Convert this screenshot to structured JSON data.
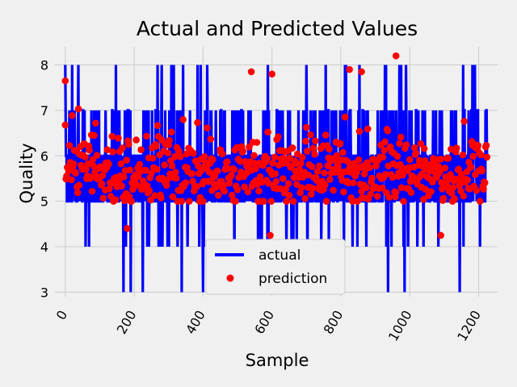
{
  "chart_data": {
    "type": "line",
    "title": "Actual and Predicted Values",
    "xlabel": "Sample",
    "ylabel": "Quality",
    "xlim": [
      -30,
      1255
    ],
    "ylim": [
      2.9,
      8.4
    ],
    "x_ticks": [
      0,
      200,
      400,
      600,
      800,
      1000,
      1200
    ],
    "x_tick_labels": [
      "0",
      "200",
      "400",
      "600",
      "800",
      "1000",
      "1200"
    ],
    "y_ticks": [
      3,
      4,
      5,
      6,
      7,
      8
    ],
    "y_tick_labels": [
      "3",
      "4",
      "5",
      "6",
      "7",
      "8"
    ],
    "grid": true,
    "legend": "lower-center",
    "n_samples": 1225,
    "series": [
      {
        "name": "actual",
        "style": "line",
        "color": "#0000ff",
        "value_distribution": {
          "3": 0.006,
          "4": 0.033,
          "5": 0.43,
          "6": 0.4,
          "7": 0.12,
          "8": 0.011
        },
        "notable_points": [
          [
            190,
            3
          ],
          [
            400,
            3
          ],
          [
            985,
            3
          ],
          [
            1145,
            3
          ],
          [
            0,
            8
          ],
          [
            20,
            8
          ],
          [
            280,
            8
          ],
          [
            700,
            8
          ],
          [
            815,
            8
          ],
          [
            1155,
            8
          ]
        ]
      },
      {
        "name": "prediction",
        "style": "scatter",
        "color": "#ff0000",
        "range": [
          4.25,
          8.2
        ],
        "notable_points": [
          [
            0,
            7.65
          ],
          [
            960,
            8.2
          ],
          [
            180,
            4.4
          ],
          [
            595,
            4.25
          ],
          [
            1090,
            4.25
          ],
          [
            825,
            7.9
          ],
          [
            860,
            7.85
          ],
          [
            600,
            7.8
          ],
          [
            540,
            7.85
          ]
        ]
      }
    ]
  }
}
